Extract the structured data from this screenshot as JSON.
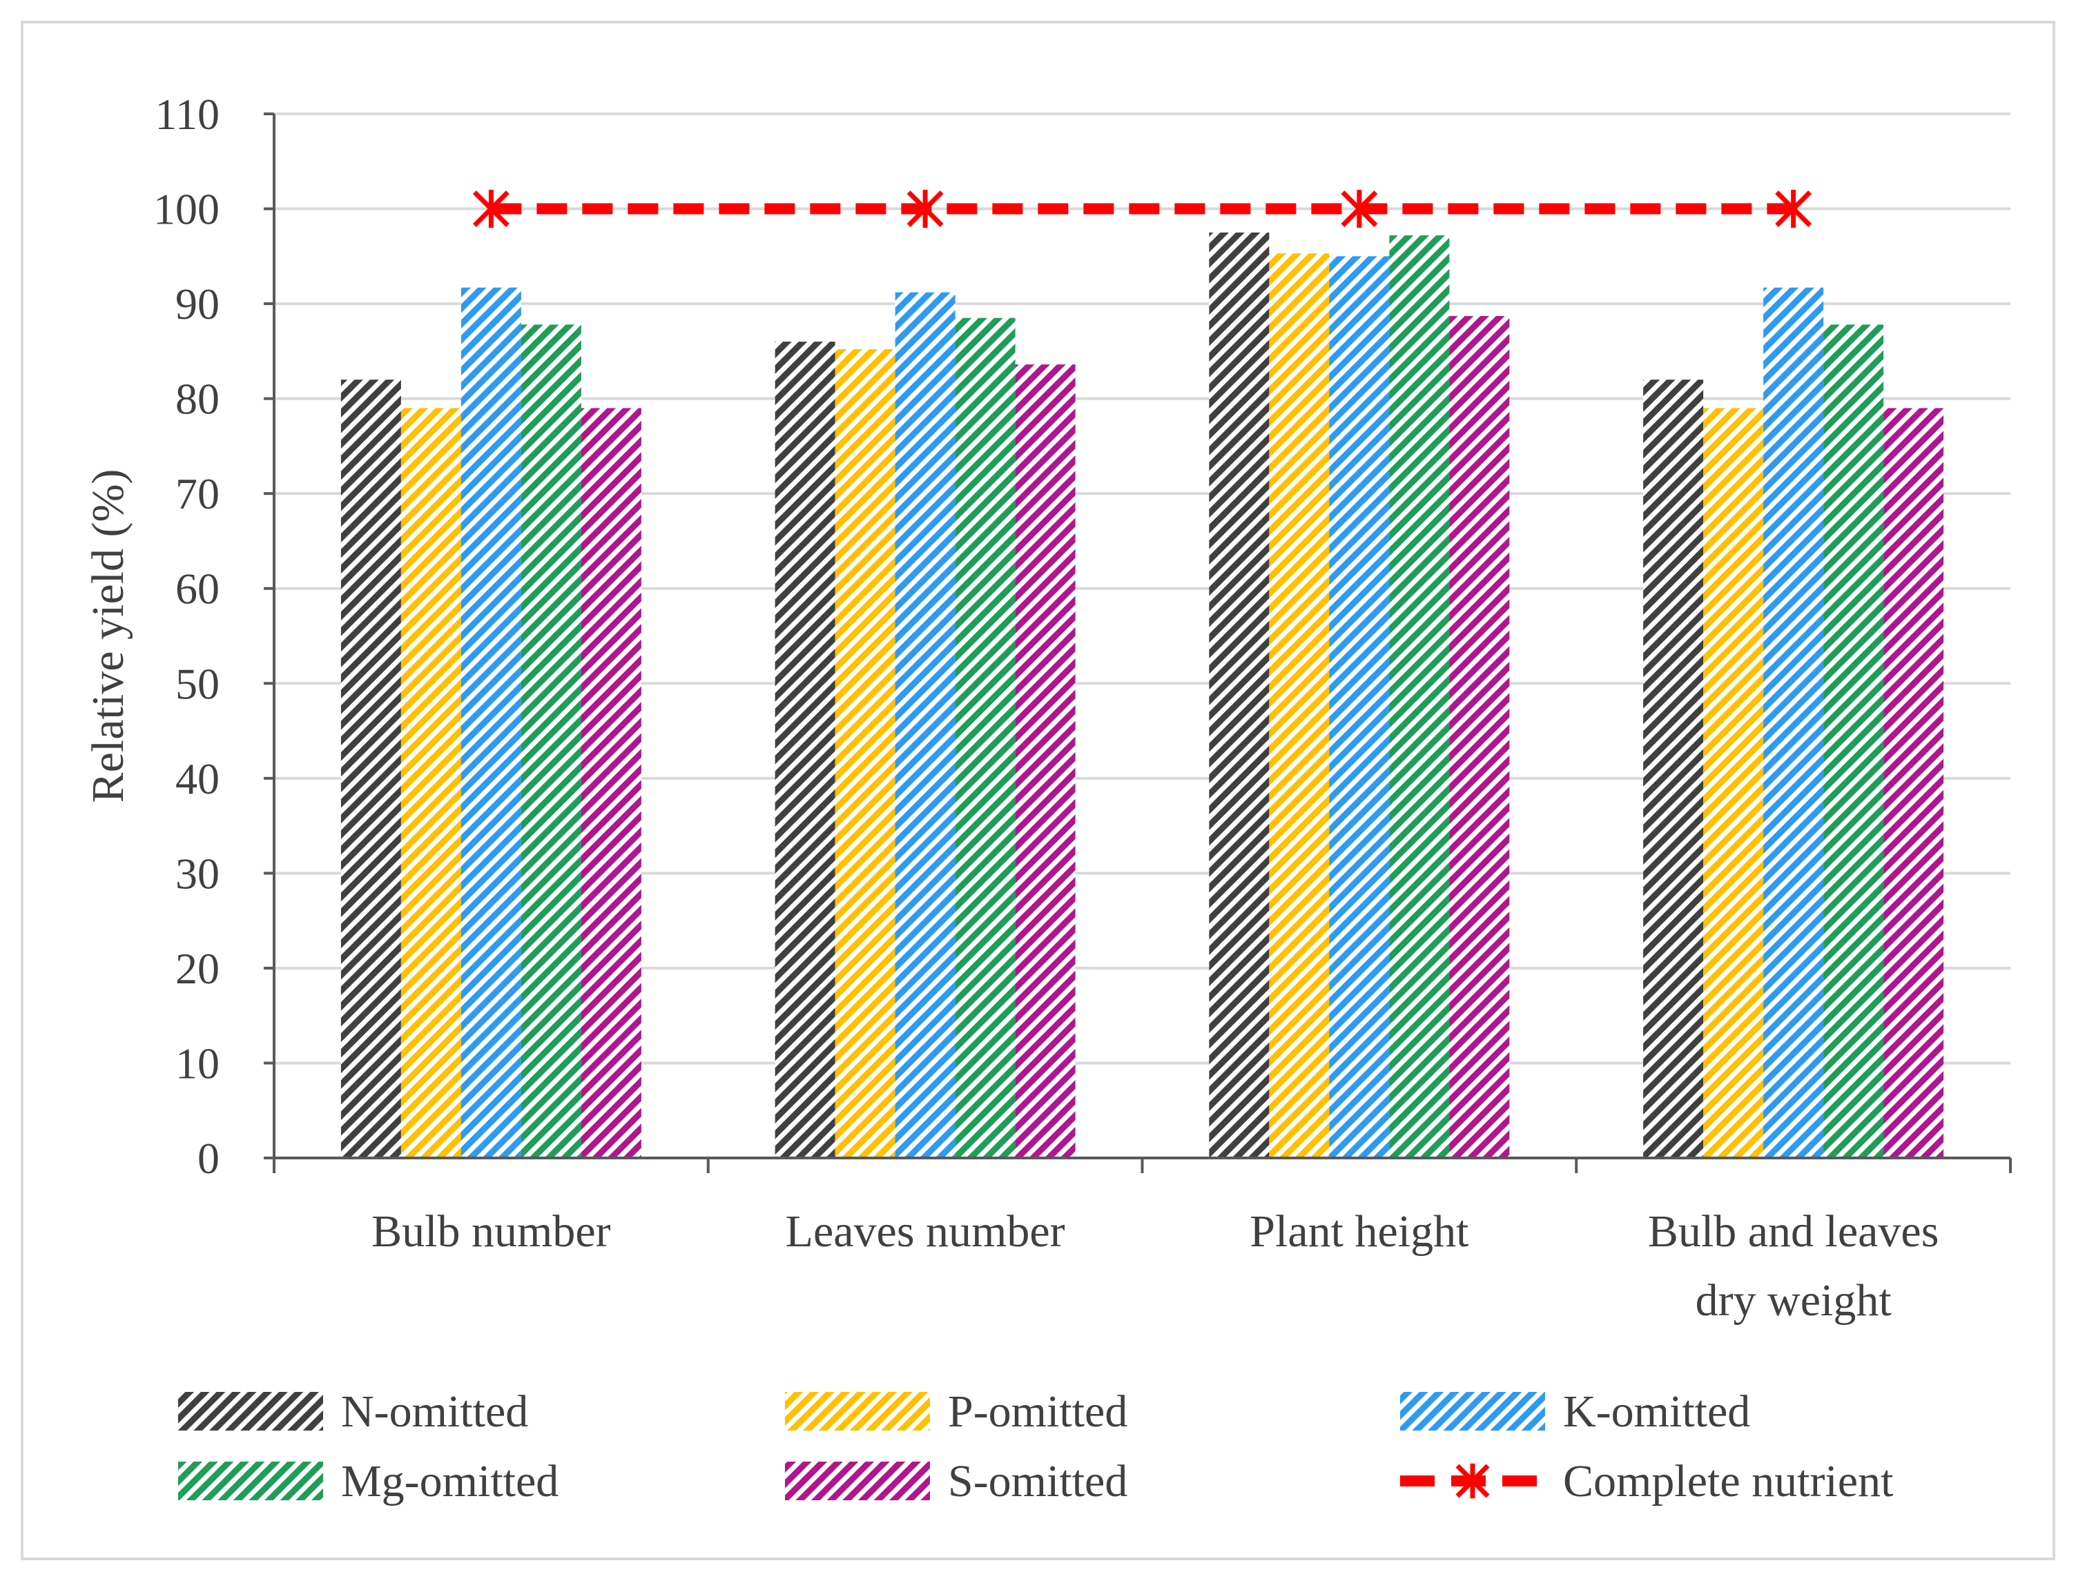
{
  "chart_data": {
    "type": "bar",
    "title": "",
    "xlabel": "",
    "ylabel": "Relative yield (%)",
    "ylim": [
      0,
      110
    ],
    "ytick_step": 10,
    "yticks": [
      "0",
      "10",
      "20",
      "30",
      "40",
      "50",
      "60",
      "70",
      "80",
      "90",
      "100",
      "110"
    ],
    "grid": true,
    "legend_position": "bottom",
    "categories": [
      [
        "Bulb number"
      ],
      [
        "Leaves number"
      ],
      [
        "Plant height"
      ],
      [
        "Bulb and leaves",
        "dry weight"
      ]
    ],
    "series": [
      {
        "name": "N-omitted",
        "type": "bar",
        "color": "#404040",
        "values": [
          82,
          86,
          97.5,
          82
        ]
      },
      {
        "name": "P-omitted",
        "type": "bar",
        "color": "#FFC000",
        "values": [
          79,
          85.2,
          95.3,
          79
        ]
      },
      {
        "name": "K-omitted",
        "type": "bar",
        "color": "#2E9BEF",
        "values": [
          91.7,
          91.2,
          95,
          91.7
        ]
      },
      {
        "name": "Mg-omitted",
        "type": "bar",
        "color": "#1F9E57",
        "values": [
          87.8,
          88.5,
          97.2,
          87.8
        ]
      },
      {
        "name": "S-omitted",
        "type": "bar",
        "color": "#B0168F",
        "values": [
          79,
          83.6,
          88.7,
          79
        ]
      },
      {
        "name": "Complete nutrient",
        "type": "line",
        "color": "#FF0000",
        "values": [
          100,
          100,
          100,
          100
        ]
      }
    ]
  }
}
